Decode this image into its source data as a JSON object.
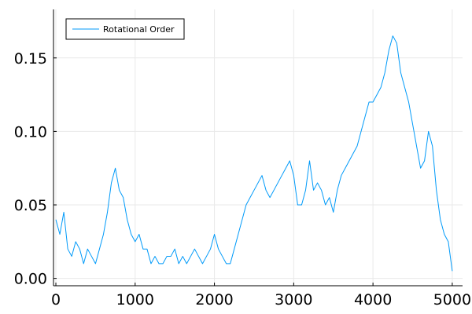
{
  "chart_data": {
    "type": "line",
    "title": "",
    "xlabel": "",
    "ylabel": "",
    "xlim": [
      -30,
      5130
    ],
    "ylim": [
      -0.005,
      0.183
    ],
    "x_ticks": [
      0,
      1000,
      2000,
      3000,
      4000,
      5000
    ],
    "x_tick_labels": [
      "0",
      "1000",
      "2000",
      "3000",
      "4000",
      "5000"
    ],
    "y_ticks": [
      0.0,
      0.05,
      0.1,
      0.15
    ],
    "y_tick_labels": [
      "0.00",
      "0.05",
      "0.10",
      "0.15"
    ],
    "grid": true,
    "legend_position": "top-left",
    "series": [
      {
        "name": "Rotational Order",
        "color": "#009af9",
        "x": [
          0,
          50,
          100,
          150,
          200,
          250,
          300,
          350,
          400,
          450,
          500,
          550,
          600,
          650,
          700,
          750,
          800,
          850,
          900,
          950,
          1000,
          1050,
          1100,
          1150,
          1200,
          1250,
          1300,
          1350,
          1400,
          1450,
          1500,
          1550,
          1600,
          1650,
          1700,
          1750,
          1800,
          1850,
          1900,
          1950,
          2000,
          2050,
          2100,
          2150,
          2200,
          2250,
          2300,
          2350,
          2400,
          2450,
          2500,
          2550,
          2600,
          2650,
          2700,
          2750,
          2800,
          2850,
          2900,
          2950,
          3000,
          3050,
          3100,
          3150,
          3200,
          3250,
          3300,
          3350,
          3400,
          3450,
          3500,
          3550,
          3600,
          3650,
          3700,
          3750,
          3800,
          3850,
          3900,
          3950,
          4000,
          4050,
          4100,
          4150,
          4200,
          4250,
          4300,
          4350,
          4400,
          4450,
          4500,
          4550,
          4600,
          4650,
          4700,
          4750,
          4800,
          4850,
          4900,
          4950,
          5000
        ],
        "y": [
          0.04,
          0.03,
          0.045,
          0.02,
          0.015,
          0.025,
          0.02,
          0.01,
          0.02,
          0.015,
          0.01,
          0.02,
          0.03,
          0.045,
          0.065,
          0.075,
          0.06,
          0.055,
          0.04,
          0.03,
          0.025,
          0.03,
          0.02,
          0.02,
          0.01,
          0.015,
          0.01,
          0.01,
          0.015,
          0.015,
          0.02,
          0.01,
          0.015,
          0.01,
          0.015,
          0.02,
          0.015,
          0.01,
          0.015,
          0.02,
          0.03,
          0.02,
          0.015,
          0.01,
          0.01,
          0.02,
          0.03,
          0.04,
          0.05,
          0.055,
          0.06,
          0.065,
          0.07,
          0.06,
          0.055,
          0.06,
          0.065,
          0.07,
          0.075,
          0.08,
          0.07,
          0.05,
          0.05,
          0.06,
          0.08,
          0.06,
          0.065,
          0.06,
          0.05,
          0.055,
          0.045,
          0.06,
          0.07,
          0.075,
          0.08,
          0.085,
          0.09,
          0.1,
          0.11,
          0.12,
          0.12,
          0.125,
          0.13,
          0.14,
          0.155,
          0.165,
          0.16,
          0.14,
          0.13,
          0.12,
          0.105,
          0.09,
          0.075,
          0.08,
          0.1,
          0.09,
          0.06,
          0.04,
          0.03,
          0.025,
          0.005
        ]
      }
    ]
  }
}
